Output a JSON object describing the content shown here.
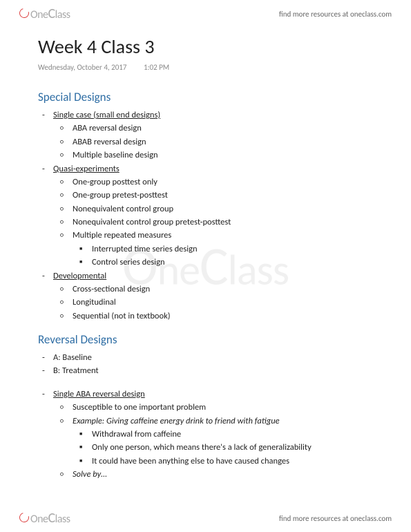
{
  "brand": {
    "name_part1": "ne",
    "name_cap": "C",
    "name_part2": "lass"
  },
  "header_link": "find more resources at oneclass.com",
  "footer_link": "find more resources at oneclass.com",
  "watermark": {
    "part1": "ne",
    "cap": "C",
    "part2": "lass"
  },
  "title": "Week 4 Class 3",
  "meta_date": "Wednesday, October 4, 2017",
  "meta_time": "1:02 PM",
  "section1": {
    "heading": "Special Designs",
    "g1_title": "Single case (small end designs)",
    "g1_items": [
      "ABA reversal design",
      "ABAB reversal design",
      "Multiple baseline design"
    ],
    "g2_title": "Quasi-experiments",
    "g2_items": [
      "One-group posttest only",
      "One-group pretest-posttest",
      "Nonequivalent control group",
      "Nonequivalent control group pretest-posttest",
      "Multiple repeated measures"
    ],
    "g2_sub": [
      "Interrupted time series design",
      "Control series design"
    ],
    "g3_title": "Developmental",
    "g3_items": [
      "Cross-sectional design",
      "Longitudinal",
      "Sequential (not in textbook)"
    ]
  },
  "section2": {
    "heading": "Reversal  Designs",
    "ab": [
      "A: Baseline",
      "B: Treatment"
    ],
    "single_title": "Single ABA reversal design",
    "single_items": [
      "Susceptible to one important problem"
    ],
    "single_example": "Example: Giving caffeine energy drink to friend with fatigue",
    "single_sub": [
      "Withdrawal from caffeine",
      "Only one person, which means there's a lack of generalizability",
      "It could have been anything else to have caused changes"
    ],
    "single_solve": "Solve by…"
  }
}
